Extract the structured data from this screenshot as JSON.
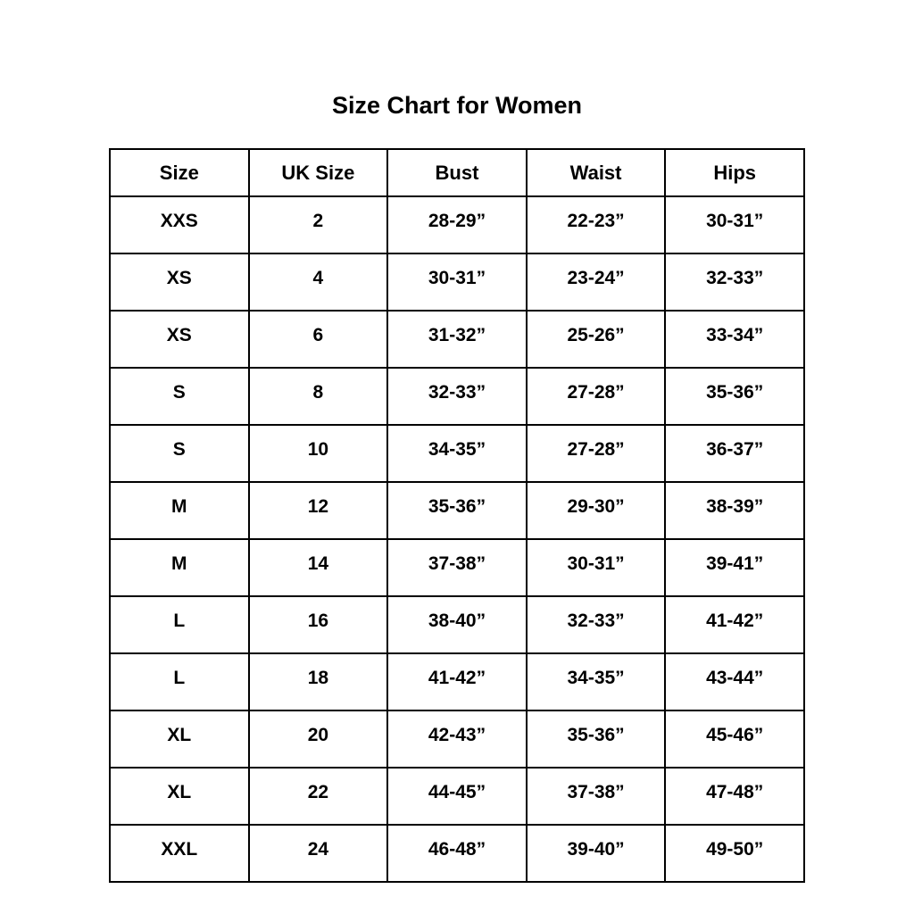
{
  "title": "Size Chart for Women",
  "chart_data": {
    "type": "table",
    "title": "Size Chart for Women",
    "columns": [
      "Size",
      "UK Size",
      "Bust",
      "Waist",
      "Hips"
    ],
    "rows": [
      [
        "XXS",
        "2",
        "28-29”",
        "22-23”",
        "30-31”"
      ],
      [
        "XS",
        "4",
        "30-31”",
        "23-24”",
        "32-33”"
      ],
      [
        "XS",
        "6",
        "31-32”",
        "25-26”",
        "33-34”"
      ],
      [
        "S",
        "8",
        "32-33”",
        "27-28”",
        "35-36”"
      ],
      [
        "S",
        "10",
        "34-35”",
        "27-28”",
        "36-37”"
      ],
      [
        "M",
        "12",
        "35-36”",
        "29-30”",
        "38-39”"
      ],
      [
        "M",
        "14",
        "37-38”",
        "30-31”",
        "39-41”"
      ],
      [
        "L",
        "16",
        "38-40”",
        "32-33”",
        "41-42”"
      ],
      [
        "L",
        "18",
        "41-42”",
        "34-35”",
        "43-44”"
      ],
      [
        "XL",
        "20",
        "42-43”",
        "35-36”",
        "45-46”"
      ],
      [
        "XL",
        "22",
        "44-45”",
        "37-38”",
        "47-48”"
      ],
      [
        "XXL",
        "24",
        "46-48”",
        "39-40”",
        "49-50”"
      ]
    ],
    "layout": {
      "grid": true,
      "border_color": "#000000",
      "background_color": "#ffffff",
      "text_color": "#000000"
    }
  }
}
